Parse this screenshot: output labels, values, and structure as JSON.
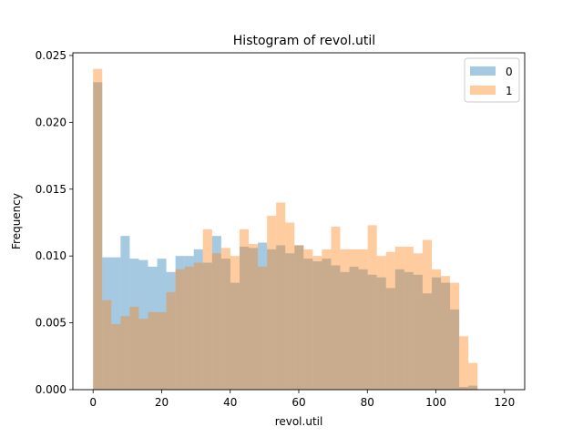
{
  "chart_data": {
    "type": "histogram",
    "title": "Histogram of revol.util",
    "xlabel": "revol.util",
    "ylabel": "Frequency",
    "xlim": [
      -5.9,
      125.9
    ],
    "ylim": [
      0,
      0.0252
    ],
    "x_ticks": [
      0,
      20,
      40,
      60,
      80,
      100,
      120
    ],
    "x_tick_labels": [
      "0",
      "20",
      "40",
      "60",
      "80",
      "100",
      "120"
    ],
    "y_ticks": [
      0,
      0.005,
      0.01,
      0.015,
      0.02,
      0.025
    ],
    "y_tick_labels": [
      "0.000",
      "0.005",
      "0.010",
      "0.015",
      "0.020",
      "0.025"
    ],
    "legend_position": "top-right",
    "bin_start": 0,
    "bin_width": 2.67,
    "series": [
      {
        "name": "0",
        "color": "#1f77b4",
        "alpha": 0.4,
        "values": [
          0.023,
          0.0099,
          0.0099,
          0.0115,
          0.0098,
          0.0097,
          0.0092,
          0.0098,
          0.0088,
          0.01,
          0.01,
          0.0105,
          0.0095,
          0.0115,
          0.0098,
          0.008,
          0.0107,
          0.0106,
          0.011,
          0.0105,
          0.0108,
          0.0102,
          0.0108,
          0.0098,
          0.0096,
          0.0098,
          0.0093,
          0.0088,
          0.0092,
          0.009,
          0.0086,
          0.0084,
          0.0076,
          0.009,
          0.0088,
          0.0086,
          0.0072,
          0.0084,
          0.008,
          0.006,
          0.0002,
          0.0003,
          0,
          0,
          0
        ]
      },
      {
        "name": "1",
        "color": "#ff7f0e",
        "alpha": 0.4,
        "values": [
          0.024,
          0.0067,
          0.0049,
          0.0055,
          0.0062,
          0.0053,
          0.0058,
          0.0058,
          0.0073,
          0.009,
          0.0092,
          0.0095,
          0.012,
          0.0102,
          0.0106,
          0.01,
          0.012,
          0.0109,
          0.0092,
          0.013,
          0.014,
          0.0125,
          0.0108,
          0.0105,
          0.01,
          0.0105,
          0.0122,
          0.0105,
          0.0105,
          0.0105,
          0.0123,
          0.01,
          0.0103,
          0.0107,
          0.0107,
          0.0102,
          0.0112,
          0.009,
          0.0085,
          0.008,
          0.004,
          0.002,
          0,
          0,
          0
        ]
      }
    ]
  }
}
